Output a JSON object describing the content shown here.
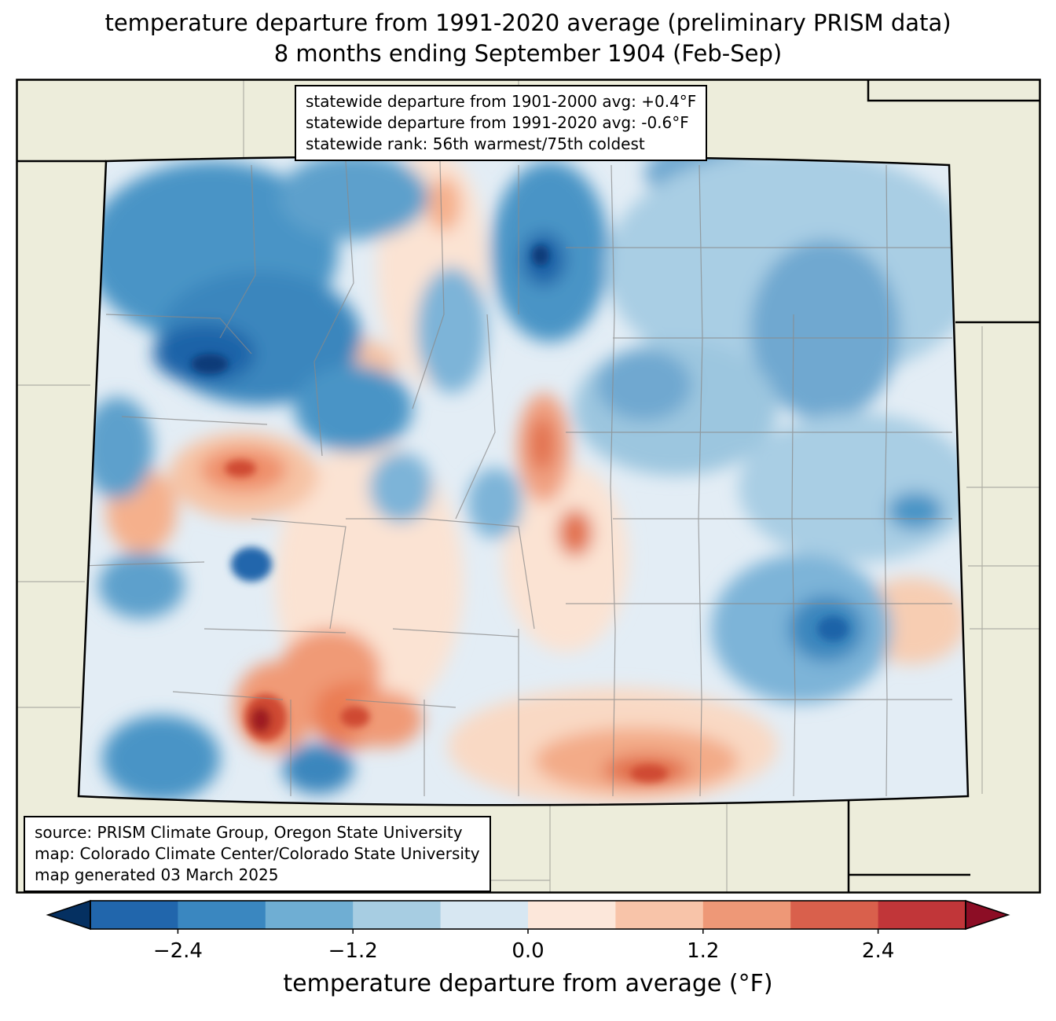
{
  "title": {
    "line1": "temperature departure from 1991-2020 average (preliminary PRISM data)",
    "line2": "8 months ending September 1904 (Feb-Sep)"
  },
  "stats_box": {
    "line1": "statewide departure from 1901-2000 avg: +0.4°F",
    "line2": "statewide departure from 1991-2020 avg: -0.6°F",
    "line3": "statewide rank: 56th warmest/75th coldest"
  },
  "source_box": {
    "line1": "source: PRISM Climate Group, Oregon State University",
    "line2": "map: Colorado Climate Center/Colorado State University",
    "line3": "map generated 03 March 2025"
  },
  "colorbar": {
    "label": "temperature departure from average (°F)",
    "tick_labels": [
      "−2.4",
      "−1.2",
      "0.0",
      "1.2",
      "2.4"
    ],
    "tick_values": [
      -2.4,
      -1.2,
      0.0,
      1.2,
      2.4
    ],
    "range": [
      -3.0,
      3.0
    ],
    "segment_colors": [
      "#2166ac",
      "#3a87c0",
      "#6faed3",
      "#a7cde2",
      "#d7e7f2",
      "#fce7da",
      "#f8c4a9",
      "#ee9877",
      "#d9604c",
      "#c13639"
    ],
    "under_color": "#053061",
    "over_color": "#8c0d25"
  },
  "map": {
    "region": "Colorado",
    "boundary_color": "#000000",
    "county_line_color": "#8a8a8a",
    "background_color": "#ededdb"
  },
  "chart_data": {
    "type": "heatmap",
    "title": "temperature departure from 1991-2020 average (preliminary PRISM data) — 8 months ending September 1904 (Feb-Sep)",
    "region": "Colorado (state map with county boundaries)",
    "units": "°F",
    "colorbar_label": "temperature departure from average (°F)",
    "colorbar_range": [
      -3.0,
      3.0
    ],
    "colorbar_ticks": [
      -2.4,
      -1.2,
      0.0,
      1.2,
      2.4
    ],
    "statewide_departure_from_1901_2000_avg_F": 0.4,
    "statewide_departure_from_1991_2020_avg_F": -0.6,
    "statewide_rank": "56th warmest/75th coldest",
    "pattern_summary": [
      "strong cold (blue) anomalies, below -2.4°F locally, in northwest Colorado mountains",
      "cold anomaly pocket in north-central Colorado (Rocky Mountain / Larimer area)",
      "moderate cold anomalies over the northeast and eastern plains, with a strong blue pocket in the southeast (Otero/Bent area)",
      "warm (orange/red) anomalies in south-central Colorado (San Luis Valley / Sangre de Cristo), exceeding +2.4°F in small spots",
      "warm spot in west-central Colorado and a warm band along the southern border"
    ]
  }
}
